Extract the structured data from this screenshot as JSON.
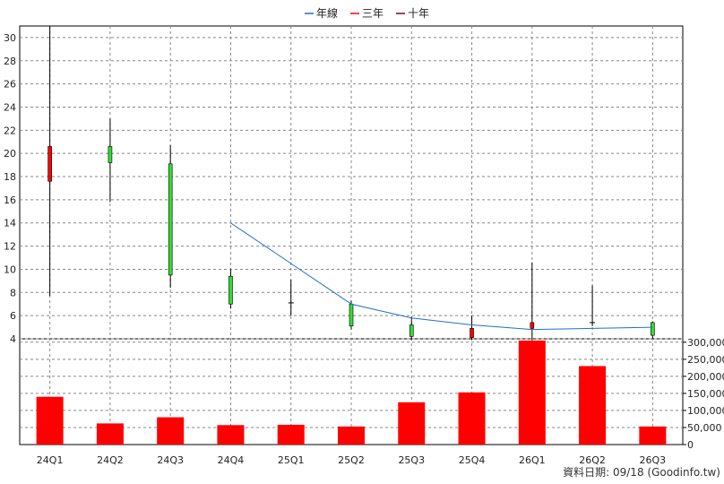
{
  "chart_data": {
    "type": "candlestick+bar",
    "legend": [
      {
        "label": "年線",
        "color": "#1f6fd1"
      },
      {
        "label": "三年",
        "color": "#ff0000"
      },
      {
        "label": "十年",
        "color": "#800040"
      }
    ],
    "categories": [
      "24Q1",
      "24Q2",
      "24Q3",
      "24Q4",
      "25Q1",
      "25Q2",
      "25Q3",
      "25Q4",
      "26Q1",
      "26Q2",
      "26Q3"
    ],
    "price_axis": {
      "ylim": [
        4,
        31
      ],
      "ticks": [
        4,
        6,
        8,
        10,
        12,
        14,
        16,
        18,
        20,
        22,
        24,
        26,
        28,
        30
      ]
    },
    "volume_axis": {
      "ylim": [
        0,
        310000
      ],
      "ticks": [
        "0",
        "50,000",
        "100,000",
        "150,000",
        "200,000",
        "250,000",
        "300,000"
      ],
      "tick_values": [
        0,
        50000,
        100000,
        150000,
        200000,
        250000,
        300000
      ]
    },
    "candles": [
      {
        "open": 17.6,
        "close": 20.6,
        "high": 31.0,
        "low": 7.7,
        "color": "red"
      },
      {
        "open": 20.6,
        "close": 19.2,
        "high": 23.0,
        "low": 15.8,
        "color": "green"
      },
      {
        "open": 19.1,
        "close": 9.5,
        "high": 20.7,
        "low": 8.4,
        "color": "green"
      },
      {
        "open": 9.4,
        "close": 7.0,
        "high": 10.0,
        "low": 6.6,
        "color": "green"
      },
      {
        "open": 7.1,
        "close": 7.1,
        "high": 9.1,
        "low": 6.0,
        "color": "black"
      },
      {
        "open": 7.0,
        "close": 5.1,
        "high": 7.3,
        "low": 4.8,
        "color": "green"
      },
      {
        "open": 5.2,
        "close": 4.2,
        "high": 5.9,
        "low": 3.9,
        "color": "green"
      },
      {
        "open": 4.1,
        "close": 4.9,
        "high": 6.0,
        "low": 3.9,
        "color": "red"
      },
      {
        "open": 4.9,
        "close": 5.4,
        "high": 10.6,
        "low": 3.9,
        "color": "red"
      },
      {
        "open": 5.4,
        "close": 5.4,
        "high": 8.6,
        "low": 5.1,
        "color": "black"
      },
      {
        "open": 5.4,
        "close": 4.3,
        "high": 5.5,
        "low": 4.0,
        "color": "green"
      }
    ],
    "year_line": [
      {
        "index": 3,
        "value": 14.0
      },
      {
        "index": 4,
        "value": 10.5
      },
      {
        "index": 5,
        "value": 7.0
      },
      {
        "index": 6,
        "value": 5.8
      },
      {
        "index": 7,
        "value": 5.2
      },
      {
        "index": 8,
        "value": 4.8
      },
      {
        "index": 9,
        "value": 4.9
      },
      {
        "index": 10,
        "value": 5.0
      }
    ],
    "volumes": [
      140000,
      62000,
      80000,
      57000,
      58000,
      53000,
      124000,
      153000,
      305000,
      230000,
      53000
    ],
    "grid": true
  },
  "footer": {
    "text": "資料日期: 09/18  (Goodinfo.tw)"
  }
}
